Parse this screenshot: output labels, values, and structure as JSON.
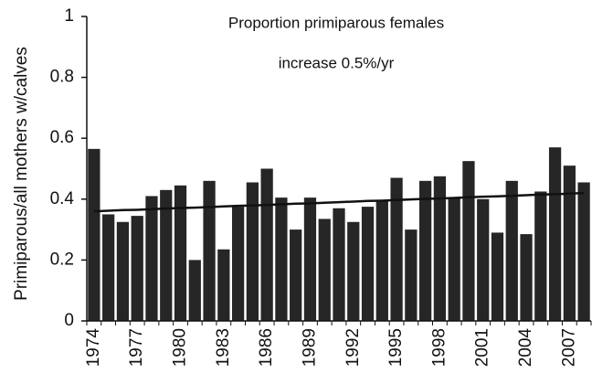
{
  "chart_data": {
    "type": "bar",
    "annotations": [
      "Proportion primiparous females",
      "increase 0.5%/yr"
    ],
    "y_label": "Primiparous/all mothers w/calves",
    "categories": [
      "1974",
      null,
      null,
      "1977",
      null,
      null,
      "1980",
      null,
      null,
      "1983",
      null,
      null,
      "1986",
      null,
      null,
      "1989",
      null,
      null,
      "1992",
      null,
      null,
      "1995",
      null,
      null,
      "1998",
      null,
      null,
      "2001",
      null,
      null,
      "2004",
      null,
      null,
      "2007",
      null
    ],
    "series": [
      {
        "type": "bar",
        "color": "#262626",
        "values": [
          0.565,
          0.35,
          0.325,
          0.345,
          0.41,
          0.43,
          0.445,
          0.2,
          0.46,
          0.235,
          0.375,
          0.455,
          0.5,
          0.405,
          0.3,
          0.405,
          0.335,
          0.37,
          0.325,
          0.375,
          0.395,
          0.47,
          0.3,
          0.46,
          0.475,
          0.405,
          0.525,
          0.4,
          0.29,
          0.46,
          0.285,
          0.425,
          0.57,
          0.51,
          0.455
        ]
      },
      {
        "type": "line",
        "color": "#111111",
        "values": [
          0.36,
          0.362,
          0.364,
          0.365,
          0.367,
          0.369,
          0.371,
          0.372,
          0.374,
          0.376,
          0.378,
          0.379,
          0.381,
          0.383,
          0.385,
          0.386,
          0.388,
          0.39,
          0.392,
          0.394,
          0.395,
          0.397,
          0.399,
          0.401,
          0.402,
          0.404,
          0.406,
          0.408,
          0.409,
          0.411,
          0.413,
          0.415,
          0.416,
          0.418,
          0.42
        ]
      }
    ],
    "ylim": [
      0,
      1
    ],
    "yticks": [
      0,
      0.2,
      0.4,
      0.6,
      0.8,
      1
    ],
    "grid": false
  }
}
